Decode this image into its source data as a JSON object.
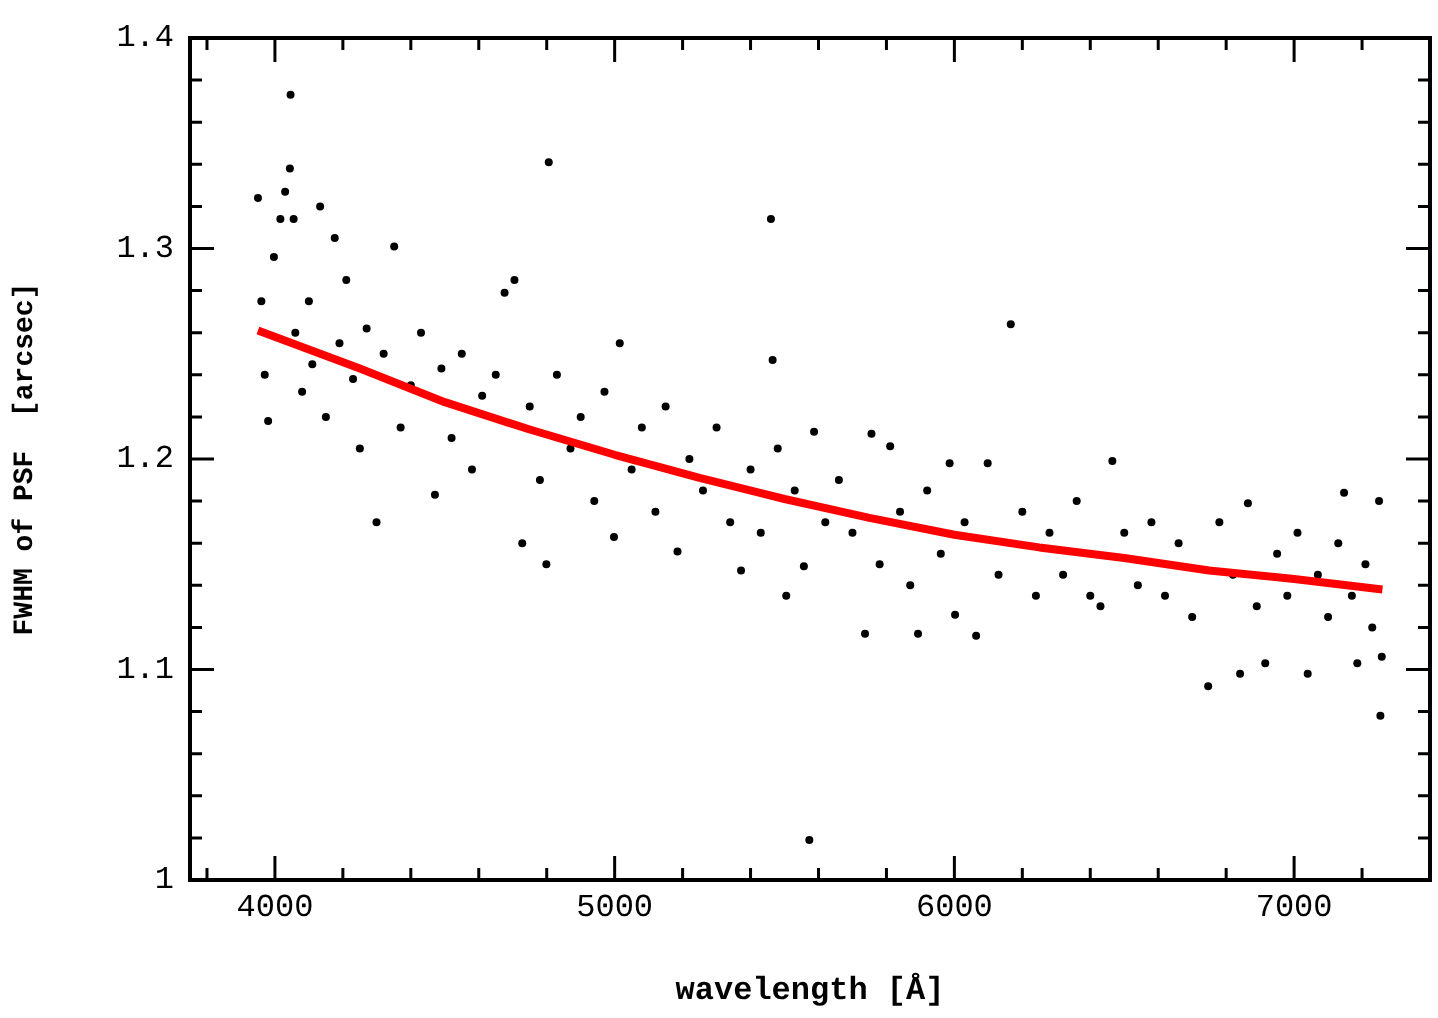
{
  "chart_data": {
    "type": "scatter",
    "xlabel": "wavelength [Å]",
    "ylabel": "FWHM of PSF  [arcsec]",
    "xlim": [
      3750,
      7400
    ],
    "ylim": [
      1,
      1.4
    ],
    "xticks": [
      {
        "value": 3800,
        "label": null
      },
      4000,
      {
        "value": 4200,
        "label": null
      },
      {
        "value": 4400,
        "label": null
      },
      {
        "value": 4600,
        "label": null
      },
      {
        "value": 4800,
        "label": null
      },
      5000,
      {
        "value": 5200,
        "label": null
      },
      {
        "value": 5400,
        "label": null
      },
      {
        "value": 5600,
        "label": null
      },
      {
        "value": 5800,
        "label": null
      },
      6000,
      {
        "value": 6200,
        "label": null
      },
      {
        "value": 6400,
        "label": null
      },
      {
        "value": 6600,
        "label": null
      },
      {
        "value": 6800,
        "label": null
      },
      7000,
      {
        "value": 7200,
        "label": null
      }
    ],
    "yticks": [
      1,
      {
        "value": 1.02,
        "label": null
      },
      {
        "value": 1.04,
        "label": null
      },
      {
        "value": 1.06,
        "label": null
      },
      {
        "value": 1.08,
        "label": null
      },
      1.1,
      {
        "value": 1.12,
        "label": null
      },
      {
        "value": 1.14,
        "label": null
      },
      {
        "value": 1.16,
        "label": null
      },
      {
        "value": 1.18,
        "label": null
      },
      1.2,
      {
        "value": 1.22,
        "label": null
      },
      {
        "value": 1.24,
        "label": null
      },
      {
        "value": 1.26,
        "label": null
      },
      {
        "value": 1.28,
        "label": null
      },
      1.3,
      {
        "value": 1.32,
        "label": null
      },
      {
        "value": 1.34,
        "label": null
      },
      {
        "value": 1.36,
        "label": null
      },
      {
        "value": 1.38,
        "label": null
      },
      1.4
    ],
    "series": [
      {
        "marker": "circle",
        "color": "#000000",
        "x": [
          3950,
          3960,
          3970,
          3980,
          3997,
          4016,
          4030,
          4044,
          4046,
          4055,
          4060,
          4080,
          4100,
          4110,
          4133,
          4150,
          4176,
          4190,
          4210,
          4230,
          4250,
          4270,
          4299,
          4320,
          4351,
          4370,
          4400,
          4430,
          4471,
          4490,
          4520,
          4550,
          4580,
          4610,
          4650,
          4676,
          4705,
          4728,
          4750,
          4780,
          4799,
          4806,
          4830,
          4870,
          4900,
          4940,
          4970,
          4998,
          5015,
          5050,
          5080,
          5120,
          5150,
          5185,
          5220,
          5260,
          5300,
          5340,
          5372,
          5400,
          5430,
          5460,
          5465,
          5480,
          5505,
          5530,
          5557,
          5573,
          5587,
          5620,
          5660,
          5700,
          5737,
          5756,
          5780,
          5811,
          5840,
          5870,
          5893,
          5920,
          5960,
          5986,
          6002,
          6030,
          6064,
          6098,
          6130,
          6166,
          6200,
          6240,
          6280,
          6320,
          6360,
          6400,
          6430,
          6465,
          6500,
          6540,
          6580,
          6620,
          6660,
          6700,
          6747,
          6780,
          6820,
          6841,
          6864,
          6890,
          6915,
          6950,
          6980,
          7010,
          7040,
          7070,
          7100,
          7130,
          7147,
          7170,
          7186,
          7210,
          7230,
          7250,
          7254,
          7258
        ],
        "values": [
          1.324,
          1.275,
          1.24,
          1.218,
          1.296,
          1.314,
          1.327,
          1.338,
          1.373,
          1.314,
          1.26,
          1.232,
          1.275,
          1.245,
          1.32,
          1.22,
          1.305,
          1.255,
          1.285,
          1.238,
          1.205,
          1.262,
          1.17,
          1.25,
          1.301,
          1.215,
          1.235,
          1.26,
          1.183,
          1.243,
          1.21,
          1.25,
          1.195,
          1.23,
          1.24,
          1.279,
          1.285,
          1.16,
          1.225,
          1.19,
          1.15,
          1.341,
          1.24,
          1.205,
          1.22,
          1.18,
          1.232,
          1.163,
          1.255,
          1.195,
          1.215,
          1.175,
          1.225,
          1.156,
          1.2,
          1.185,
          1.215,
          1.17,
          1.147,
          1.195,
          1.165,
          1.314,
          1.247,
          1.205,
          1.135,
          1.185,
          1.149,
          1.019,
          1.213,
          1.17,
          1.19,
          1.165,
          1.117,
          1.212,
          1.15,
          1.206,
          1.175,
          1.14,
          1.117,
          1.185,
          1.155,
          1.198,
          1.126,
          1.17,
          1.116,
          1.198,
          1.145,
          1.264,
          1.175,
          1.135,
          1.165,
          1.145,
          1.18,
          1.135,
          1.13,
          1.199,
          1.165,
          1.14,
          1.17,
          1.135,
          1.16,
          1.125,
          1.092,
          1.17,
          1.145,
          1.098,
          1.179,
          1.13,
          1.103,
          1.155,
          1.135,
          1.165,
          1.098,
          1.145,
          1.125,
          1.16,
          1.184,
          1.135,
          1.103,
          1.15,
          1.12,
          1.18,
          1.078,
          1.106
        ]
      },
      {
        "type": "line",
        "marker": "none",
        "color": "#ff0000",
        "x": [
          3950,
          4250,
          4500,
          4750,
          5000,
          5250,
          5500,
          5750,
          6000,
          6250,
          6500,
          6750,
          7000,
          7260
        ],
        "values": [
          1.261,
          1.243,
          1.227,
          1.214,
          1.202,
          1.191,
          1.181,
          1.172,
          1.164,
          1.158,
          1.153,
          1.147,
          1.143,
          1.138
        ]
      }
    ]
  }
}
